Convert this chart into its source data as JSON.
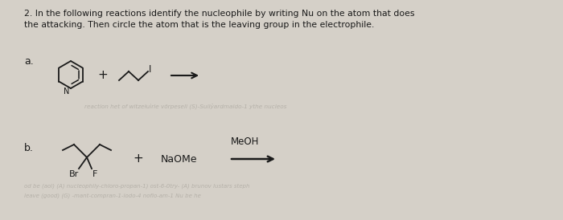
{
  "bg_color": "#d5d0c8",
  "title_line1": "2. In the following reactions identify the nucleophile by writing Nu on the atom that does",
  "title_line2": "the attacking. Then circle the atom that is the leaving group in the electrophile.",
  "label_a": "a.",
  "label_b": "b.",
  "plus_sign": "+",
  "arrow_label_b": "MeOH",
  "naome_label": "NaOMe",
  "br_label": "Br",
  "f_label": "F",
  "n_label": "N",
  "i_label": "I",
  "text_color": "#1a1a1a",
  "faded_text_color": "#b0aca4",
  "faded_text_a": "reaction het of witzełuìrle vörpesell (S)-Sullŷardmaldo-1 ythe nucleos",
  "faded_text_b1": "od be (aol) (A) nucleophily-chloro-propan-1) ost-6-0try- (A) brunov lustars steph",
  "faded_text_b2": "leave (good) (G) -mant-compran-1-iodo-4 nofio-am-1 Nu be he"
}
